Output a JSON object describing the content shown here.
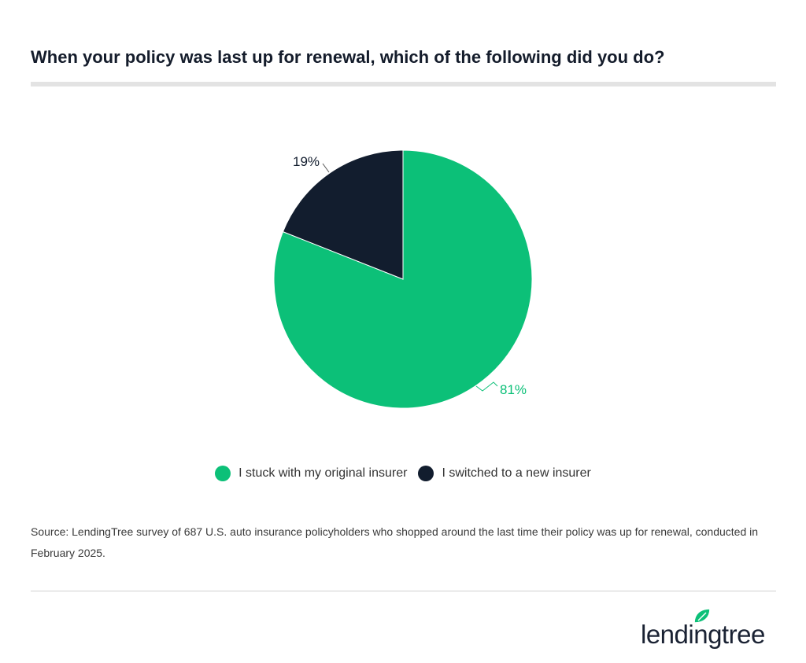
{
  "chart_data": {
    "type": "pie",
    "title": "When your policy was last up for renewal, which of the following did you do?",
    "slices": [
      {
        "label": "I stuck with my original insurer",
        "value": 81,
        "data_label": "81%",
        "color": "#0cc078"
      },
      {
        "label": "I switched to a new insurer",
        "value": 19,
        "data_label": "19%",
        "color": "#121d2e"
      }
    ],
    "legend_position": "bottom"
  },
  "source": "Source: LendingTree survey of 687 U.S. auto insurance policyholders who shopped around the last time their policy was up for renewal, conducted in February 2025.",
  "logo": {
    "text": "lendingtree",
    "color": "#0cc078"
  }
}
